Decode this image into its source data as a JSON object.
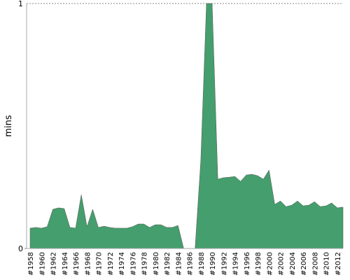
{
  "chart_data": {
    "type": "area",
    "y_label": "mins",
    "categories": [
      "#1958",
      null,
      "#1960",
      null,
      "#1962",
      null,
      "#1964",
      null,
      "#1966",
      null,
      "#1968",
      null,
      "#1970",
      null,
      "#1972",
      null,
      "#1974",
      null,
      "#1976",
      null,
      "#1978",
      null,
      "#1980",
      null,
      "#1982",
      null,
      "#1984",
      null,
      "#1986",
      null,
      "#1988",
      null,
      "#1990",
      null,
      "#1992",
      null,
      "#1994",
      null,
      "#1996",
      null,
      "#1998",
      null,
      "#2000",
      null,
      "#2002",
      null,
      "#2004",
      null,
      "#2006",
      null,
      "#2008",
      null,
      "#2010",
      null,
      "#2012",
      null
    ],
    "values": [
      0.083,
      0.086,
      0.083,
      0.089,
      0.16,
      0.166,
      0.163,
      0.086,
      0.083,
      0.22,
      0.089,
      0.16,
      0.086,
      0.091,
      0.086,
      0.083,
      0.083,
      0.083,
      0.089,
      0.1,
      0.1,
      0.086,
      0.097,
      0.097,
      0.086,
      0.086,
      0.094,
      0,
      null,
      0,
      0.357,
      1.0,
      1.0,
      0.283,
      0.289,
      0.291,
      0.294,
      0.274,
      0.3,
      0.303,
      0.297,
      0.283,
      0.32,
      0.18,
      0.194,
      0.171,
      0.177,
      0.194,
      0.174,
      0.177,
      0.191,
      0.171,
      0.174,
      0.186,
      0.166,
      0.169
    ],
    "color": "#459e6d",
    "ylim": [
      0,
      1
    ],
    "yticks": [
      0,
      1
    ],
    "grid": true
  }
}
